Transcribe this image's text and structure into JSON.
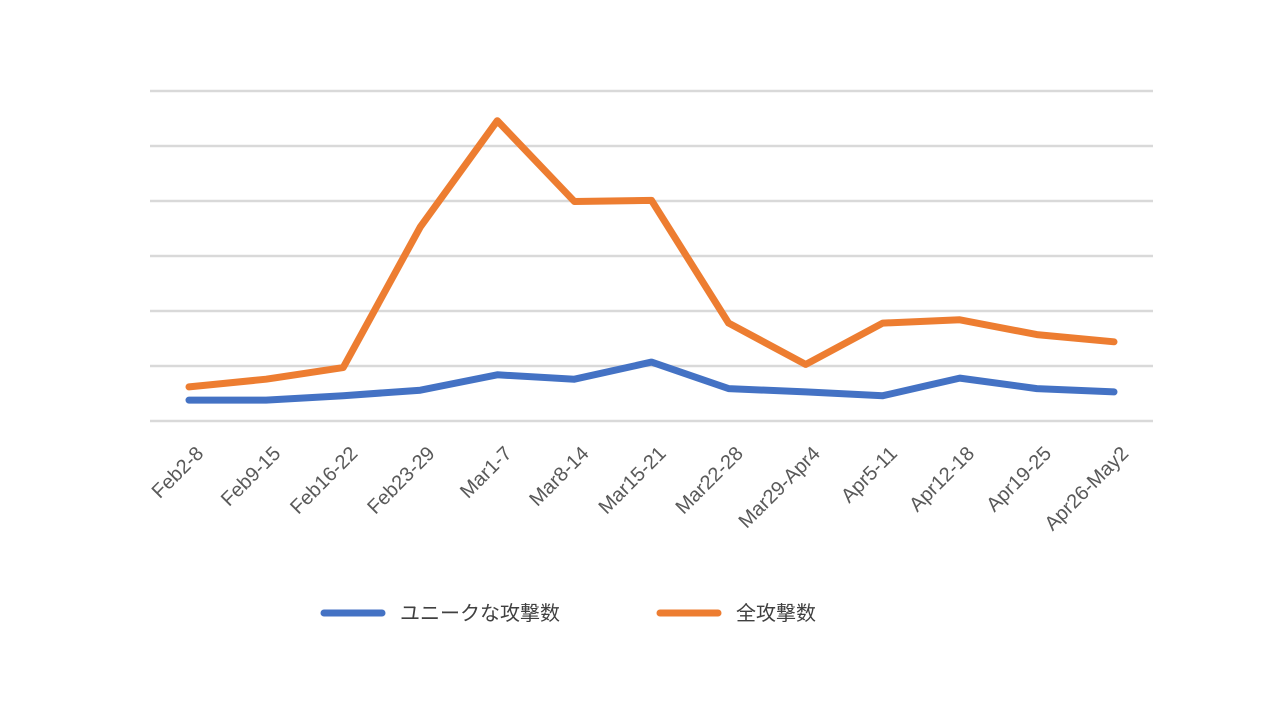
{
  "chart_data": {
    "type": "line",
    "categories": [
      "Feb2-8",
      "Feb9-15",
      "Feb16-22",
      "Feb23-29",
      "Mar1-7",
      "Mar8-14",
      "Mar15-21",
      "Mar22-28",
      "Mar29-Apr4",
      "Apr5-11",
      "Apr12-18",
      "Apr19-25",
      "Apr26-May2"
    ],
    "series": [
      {
        "name": "ユニークな攻撃数",
        "color": "#4472c4",
        "values": [
          0.38,
          0.38,
          0.46,
          0.56,
          0.84,
          0.76,
          1.07,
          0.59,
          0.53,
          0.46,
          0.78,
          0.59,
          0.53
        ]
      },
      {
        "name": "全攻撃数",
        "color": "#ed7d31",
        "values": [
          0.62,
          0.76,
          0.97,
          3.53,
          5.46,
          3.99,
          4.01,
          1.78,
          1.03,
          1.78,
          1.84,
          1.57,
          1.44
        ]
      }
    ],
    "ylim": [
      0,
      6
    ],
    "grid": true,
    "legend_position": "bottom",
    "title": "",
    "xlabel": "",
    "ylabel": ""
  }
}
